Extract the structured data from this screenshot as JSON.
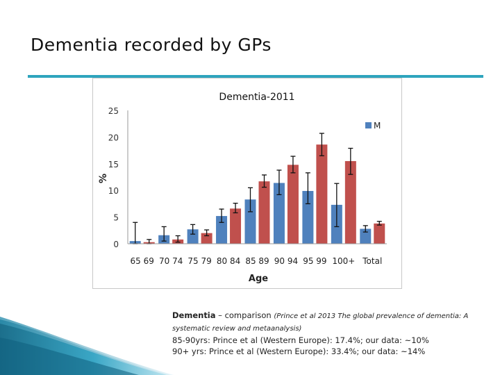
{
  "slide": {
    "title": "Dementia recorded by GPs"
  },
  "caption": {
    "label": "Dementia",
    "dash": " – comparison ",
    "reference": "(Prince et al 2013 The global prevalence of dementia: A systematic review and metaanalysis)",
    "line1": "85-90yrs: Prince et al (Western Europe): 17.4%;  our data: ~10%",
    "line2": "90+ yrs: Prince et al (Western Europe): 33.4%; our data: ~14%"
  },
  "colors": {
    "accent": "#2ea4bd",
    "series_m": "#4f81bd",
    "series_f": "#c0504d"
  },
  "chart_data": {
    "type": "bar",
    "title": "Dementia-2011",
    "xlabel": "Age",
    "ylabel": "%",
    "ylim": [
      0,
      25
    ],
    "yticks": [
      0,
      5,
      10,
      15,
      20,
      25
    ],
    "legend": {
      "placement": "top-right",
      "entries": [
        "M"
      ]
    },
    "categories": [
      "65 69",
      "70 74",
      "75 79",
      "80 84",
      "85 89",
      "90 94",
      "95 99",
      "100+",
      "Total"
    ],
    "series": [
      {
        "name": "M",
        "color": "#4f81bd",
        "values": [
          0.5,
          1.6,
          2.7,
          5.2,
          8.3,
          11.4,
          9.9,
          7.3,
          2.8
        ],
        "err_low": [
          0.0,
          0.5,
          1.8,
          4.0,
          6.0,
          9.2,
          7.5,
          3.2,
          2.2
        ],
        "err_high": [
          4.0,
          3.2,
          3.6,
          6.5,
          10.5,
          13.8,
          13.3,
          11.3,
          3.4
        ]
      },
      {
        "values": [
          0.3,
          0.8,
          2.0,
          6.6,
          11.7,
          14.8,
          18.6,
          15.5,
          3.8
        ],
        "color": "#c0504d",
        "err_low": [
          0.0,
          0.3,
          1.5,
          5.8,
          10.6,
          13.3,
          16.5,
          13.0,
          3.5
        ],
        "err_high": [
          0.8,
          1.5,
          2.6,
          7.6,
          12.9,
          16.4,
          20.7,
          17.9,
          4.2
        ]
      }
    ]
  }
}
